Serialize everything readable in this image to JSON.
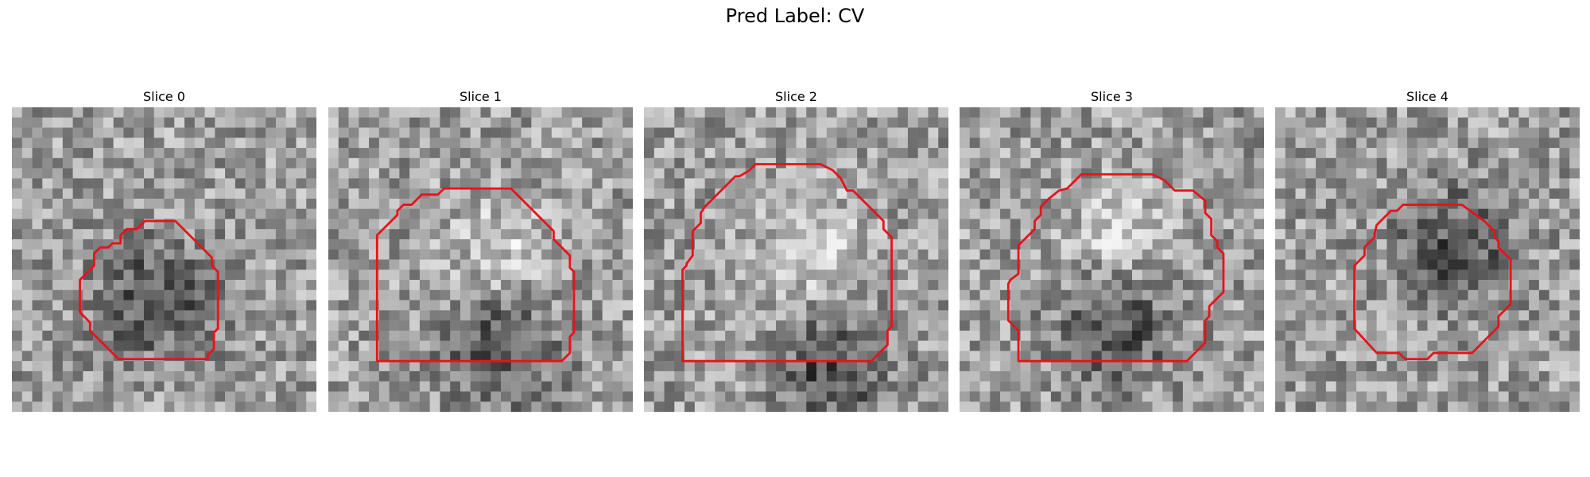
{
  "figure": {
    "title": "Pred Label: CV"
  },
  "panels": [
    {
      "title": "Slice 0",
      "seed": 11,
      "dark_center": [
        0.45,
        0.62
      ],
      "bright_center": null
    },
    {
      "title": "Slice 1",
      "seed": 23,
      "dark_center": [
        0.55,
        0.78
      ],
      "bright_center": [
        0.55,
        0.45
      ]
    },
    {
      "title": "Slice 2",
      "seed": 37,
      "dark_center": [
        0.6,
        0.85
      ],
      "bright_center": [
        0.55,
        0.45
      ]
    },
    {
      "title": "Slice 3",
      "seed": 41,
      "dark_center": [
        0.5,
        0.7
      ],
      "bright_center": [
        0.52,
        0.4
      ]
    },
    {
      "title": "Slice 4",
      "seed": 59,
      "dark_center": [
        0.58,
        0.45
      ],
      "bright_center": null
    }
  ],
  "colors": {
    "contour": "#e8121b"
  }
}
